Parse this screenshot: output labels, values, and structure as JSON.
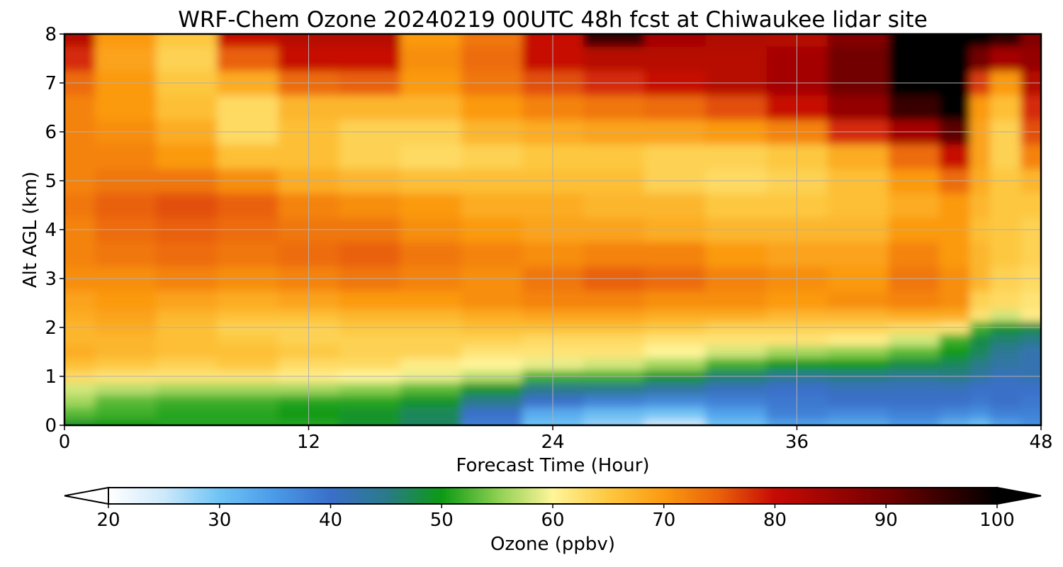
{
  "chart_data": {
    "type": "heatmap",
    "title": "WRF-Chem Ozone  20240219 00UTC 48h fcst at Chiwaukee lidar site",
    "xlabel": "Forecast Time (Hour)",
    "ylabel": "Alt AGL (km)",
    "xlim": [
      0,
      48
    ],
    "ylim": [
      0,
      8
    ],
    "x_ticks": [
      "0",
      "12",
      "24",
      "36",
      "48"
    ],
    "y_ticks": [
      "0",
      "1",
      "2",
      "3",
      "4",
      "5",
      "6",
      "7",
      "8"
    ],
    "grid": true,
    "colorbar": {
      "label": "Ozone  (ppbv)",
      "range": [
        20,
        100
      ],
      "ticks": [
        "20",
        "30",
        "40",
        "50",
        "60",
        "70",
        "80",
        "90",
        "100"
      ],
      "extend": "both",
      "colors": {
        "20": "#ffffff",
        "25": "#cde9fa",
        "30": "#6ec3f5",
        "35": "#4a9ae8",
        "40": "#3a6fc9",
        "45": "#2a7a8a",
        "50": "#0c9a14",
        "55": "#8ccf50",
        "60": "#fff59a",
        "65": "#fdc840",
        "70": "#fb9a10",
        "75": "#e9600a",
        "80": "#c70a05",
        "90": "#720000",
        "100": "#000000"
      }
    },
    "times_h": [
      0,
      3,
      6,
      9,
      12,
      15,
      18,
      21,
      24,
      27,
      30,
      33,
      36,
      39,
      42,
      44,
      45,
      46,
      48
    ],
    "altitudes_km": [
      0,
      0.25,
      0.5,
      0.75,
      1,
      1.25,
      1.5,
      1.75,
      2,
      2.25,
      2.5,
      3,
      3.5,
      4,
      4.5,
      5,
      5.5,
      6,
      6.5,
      7,
      7.5,
      8
    ],
    "values": [
      [
        49,
        50,
        51,
        51,
        51,
        49,
        47,
        38,
        30,
        28,
        25,
        30,
        34,
        33,
        35,
        32,
        30,
        34,
        36
      ],
      [
        53,
        52,
        51,
        51,
        50,
        49,
        47,
        40,
        33,
        31,
        30,
        34,
        38,
        37,
        38,
        37,
        36,
        38,
        38
      ],
      [
        56,
        53,
        52,
        52,
        51,
        51,
        49,
        45,
        40,
        38,
        37,
        38,
        39,
        40,
        40,
        40,
        39,
        40,
        39
      ],
      [
        58,
        57,
        56,
        56,
        56,
        55,
        53,
        49,
        45,
        45,
        43,
        41,
        40,
        41,
        41,
        41,
        40,
        40,
        40
      ],
      [
        63,
        62,
        62,
        62,
        61,
        60,
        59,
        57,
        52,
        52,
        49,
        46,
        44,
        45,
        44,
        45,
        43,
        41,
        42
      ],
      [
        66,
        65,
        64,
        65,
        63,
        63,
        61,
        60,
        59,
        58,
        56,
        52,
        50,
        50,
        48,
        47,
        45,
        43,
        42
      ],
      [
        68,
        67,
        66,
        66,
        65,
        64,
        64,
        62,
        62,
        62,
        60,
        58,
        56,
        55,
        53,
        50,
        47,
        44,
        42
      ],
      [
        67,
        67,
        66,
        65,
        64,
        64,
        64,
        64,
        63,
        63,
        62,
        62,
        62,
        61,
        58,
        52,
        48,
        46,
        45
      ],
      [
        67,
        68,
        66,
        64,
        64,
        65,
        65,
        66,
        66,
        66,
        65,
        64,
        64,
        64,
        63,
        62,
        52,
        49,
        48
      ],
      [
        68,
        69,
        67,
        66,
        66,
        67,
        67,
        68,
        69,
        69,
        68,
        68,
        67,
        67,
        68,
        68,
        62,
        58,
        61
      ],
      [
        69,
        70,
        69,
        68,
        69,
        70,
        70,
        71,
        72,
        72,
        71,
        71,
        70,
        71,
        72,
        71,
        64,
        63,
        62
      ],
      [
        71,
        71,
        72,
        71,
        72,
        73,
        72,
        71,
        73,
        75,
        74,
        72,
        71,
        70,
        73,
        71,
        67,
        64,
        63
      ],
      [
        72,
        73,
        74,
        73,
        74,
        75,
        73,
        72,
        71,
        72,
        72,
        70,
        69,
        69,
        72,
        70,
        67,
        65,
        64
      ],
      [
        72,
        74,
        75,
        74,
        73,
        73,
        71,
        70,
        69,
        69,
        68,
        67,
        67,
        67,
        70,
        70,
        66,
        65,
        64
      ],
      [
        73,
        75,
        76,
        75,
        72,
        71,
        70,
        68,
        68,
        67,
        67,
        65,
        65,
        66,
        68,
        70,
        67,
        65,
        65
      ],
      [
        72,
        73,
        73,
        71,
        68,
        67,
        66,
        66,
        66,
        66,
        64,
        63,
        64,
        66,
        70,
        74,
        68,
        65,
        67
      ],
      [
        72,
        72,
        70,
        66,
        66,
        64,
        63,
        64,
        65,
        65,
        64,
        64,
        65,
        68,
        74,
        80,
        69,
        64,
        72
      ],
      [
        72,
        71,
        68,
        63,
        66,
        64,
        64,
        67,
        68,
        69,
        69,
        70,
        72,
        78,
        84,
        92,
        69,
        64,
        76
      ],
      [
        72,
        70,
        66,
        63,
        67,
        67,
        67,
        70,
        72,
        73,
        74,
        76,
        80,
        86,
        95,
        100,
        70,
        66,
        78
      ],
      [
        74,
        70,
        65,
        68,
        74,
        75,
        70,
        73,
        76,
        78,
        80,
        82,
        84,
        90,
        100,
        100,
        77,
        70,
        82
      ],
      [
        78,
        69,
        64,
        75,
        80,
        80,
        71,
        74,
        80,
        82,
        82,
        82,
        84,
        90,
        100,
        100,
        90,
        84,
        86
      ],
      [
        82,
        70,
        65,
        80,
        82,
        82,
        70,
        73,
        80,
        95,
        84,
        83,
        82,
        88,
        100,
        100,
        100,
        96,
        88
      ]
    ]
  }
}
